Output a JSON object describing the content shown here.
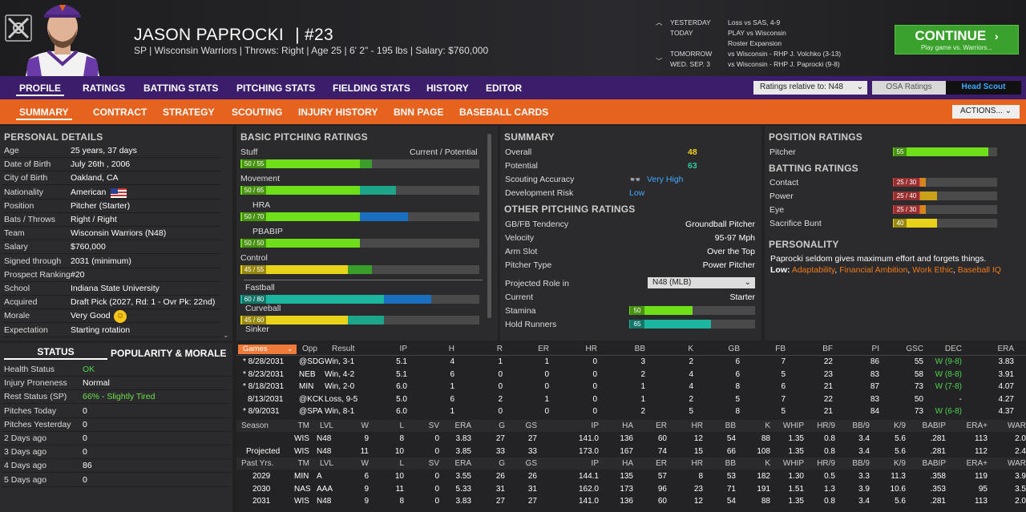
{
  "player": {
    "name": "JASON PAPROCKI",
    "number": "| #23",
    "subtitle": "SP | Wisconsin Warriors  |  Throws: Right  |  Age 25  |  6' 2\"  -  195 lbs  |  Salary: $760,000"
  },
  "schedule": [
    {
      "label": "YESTERDAY",
      "text": "Loss vs SAS, 4-9"
    },
    {
      "label": "TODAY",
      "text": "PLAY vs Wisconsin"
    },
    {
      "label": "",
      "text": "Roster Expansion"
    },
    {
      "label": "TOMORROW",
      "text": "vs Wisconsin - RHP J. Volchko (3-13)"
    },
    {
      "label": "WED. SEP. 3",
      "text": "vs Wisconsin - RHP J. Paprocki (9-8)"
    }
  ],
  "continue": {
    "label": "CONTINUE",
    "sub": "Play game vs. Warriors..."
  },
  "nav_main": [
    "PROFILE",
    "RATINGS",
    "BATTING STATS",
    "PITCHING STATS",
    "FIELDING STATS",
    "HISTORY",
    "EDITOR"
  ],
  "nav_sub": [
    "SUMMARY",
    "CONTRACT",
    "STRATEGY",
    "SCOUTING",
    "INJURY HISTORY",
    "BNN PAGE",
    "BASEBALL CARDS"
  ],
  "ratings_select": "Ratings relative to: N48",
  "osa_btn": "OSA Ratings",
  "scout_btn": "Head Scout",
  "actions_btn": "ACTIONS...",
  "personal": {
    "title": "PERSONAL DETAILS",
    "rows": [
      [
        "Age",
        "25 years, 37 days"
      ],
      [
        "Date of Birth",
        "July 26th , 2006"
      ],
      [
        "City of Birth",
        "Oakland, CA"
      ],
      [
        "Nationality",
        "American"
      ],
      [
        "Position",
        "Pitcher (Starter)"
      ],
      [
        "Bats / Throws",
        "Right / Right"
      ],
      [
        "Team",
        "Wisconsin Warriors (N48)"
      ],
      [
        "Salary",
        "$760,000"
      ],
      [
        "Signed through",
        "2031 (minimum)"
      ],
      [
        "Prospect Ranking",
        "#20"
      ],
      [
        "School",
        "Indiana State University"
      ],
      [
        "Acquired",
        "Draft Pick (2027, Rd: 1 - Ovr Pk: 22nd)"
      ],
      [
        "Morale",
        "Very Good"
      ],
      [
        "Expectation",
        "Starting rotation"
      ]
    ]
  },
  "status": {
    "tab1": "STATUS",
    "tab2": "POPULARITY & MORALE",
    "rows": [
      [
        "Health Status",
        "OK",
        "#4fd44f"
      ],
      [
        "Injury Proneness",
        "Normal",
        "#ffffff"
      ],
      [
        "Rest Status (SP)",
        "66% - Slightly Tired",
        "#6ee04a"
      ],
      [
        "Pitches Today",
        "0",
        "#ffffff"
      ],
      [
        "Pitches Yesterday",
        "0",
        "#ffffff"
      ],
      [
        "2 Days ago",
        "0",
        "#ffffff"
      ],
      [
        "3 Days ago",
        "0",
        "#ffffff"
      ],
      [
        "4 Days ago",
        "86",
        "#ffffff"
      ],
      [
        "5 Days ago",
        "0",
        "#ffffff"
      ]
    ]
  },
  "basic": {
    "title": "BASIC PITCHING RATINGS",
    "legend": "Current / Potential",
    "items": [
      {
        "label": "Stuff",
        "badge": "50 / 55",
        "cur": 50,
        "pot": 55,
        "potcol": "#3a9e2a"
      },
      {
        "label": "Movement",
        "badge": "50 / 65",
        "cur": 50,
        "pot": 65,
        "potcol": "#1da58a"
      },
      {
        "label": "HRA",
        "badge": "50 / 70",
        "cur": 50,
        "pot": 70,
        "potcol": "#1a6fc0",
        "sub": true
      },
      {
        "label": "PBABIP",
        "badge": "50 / 50",
        "cur": 50,
        "pot": 50,
        "potcol": "#3a9e2a",
        "sub": true
      },
      {
        "label": "Control",
        "badge": "45 / 55",
        "cur": 45,
        "pot": 55,
        "potcol": "#3a9e2a",
        "curcol": "#e8d21a"
      },
      {
        "label": "Fastball",
        "badge": "60 / 80",
        "cur": 60,
        "pot": 80,
        "potcol": "#1a6fc0",
        "curcol": "#1cb5a0"
      },
      {
        "label": "Curveball",
        "badge": "45 / 60",
        "cur": 45,
        "pot": 60,
        "potcol": "#1da58a",
        "curcol": "#e8d21a"
      },
      {
        "label": "Sinker",
        "badge": "",
        "cur": 0,
        "pot": 0,
        "potcol": "#1da58a"
      }
    ]
  },
  "summary": {
    "title": "SUMMARY",
    "overall": [
      "Overall",
      "48"
    ],
    "potential": [
      "Potential",
      "63"
    ],
    "scouting": [
      "Scouting Accuracy",
      "Very High"
    ],
    "devrisk": [
      "Development Risk",
      "Low"
    ],
    "other_title": "OTHER PITCHING RATINGS",
    "other": [
      [
        "GB/FB Tendency",
        "Groundball Pitcher"
      ],
      [
        "Velocity",
        "95-97 Mph"
      ],
      [
        "Arm Slot",
        "Over the Top"
      ],
      [
        "Pitcher Type",
        "Power Pitcher"
      ]
    ],
    "role_label": "Projected Role in",
    "role_select": "N48 (MLB)",
    "current": [
      "Current",
      "Starter"
    ],
    "stamina": {
      "label": "Stamina",
      "v": 50
    },
    "hold": {
      "label": "Hold Runners",
      "v": 65
    }
  },
  "position": {
    "title": "POSITION RATINGS",
    "pitcher": {
      "label": "Pitcher",
      "badge": "55",
      "v": 55
    },
    "batting_title": "BATTING RATINGS",
    "batting": [
      {
        "label": "Contact",
        "badge": "25 / 30",
        "cur": 25,
        "pot": 30,
        "col": "#e84a4a",
        "potcol": "#d4861a"
      },
      {
        "label": "Power",
        "badge": "25 / 40",
        "cur": 25,
        "pot": 40,
        "col": "#e84a4a",
        "potcol": "#c9a21a"
      },
      {
        "label": "Eye",
        "badge": "25 / 30",
        "cur": 25,
        "pot": 30,
        "col": "#e84a4a",
        "potcol": "#d4861a"
      },
      {
        "label": "Sacrifice Bunt",
        "badge": "40",
        "cur": 40,
        "pot": 40,
        "col": "#e8d21a",
        "potcol": "#e8d21a"
      }
    ]
  },
  "personality": {
    "title": "PERSONALITY",
    "text": "Paprocki seldom gives maximum effort and forgets things.",
    "low_label": "Low:",
    "traits": [
      "Adaptability",
      "Financial Ambition",
      "Work Ethic",
      "Baseball IQ"
    ]
  },
  "games": {
    "tab": "Games",
    "headers": [
      "Opp",
      "Result",
      "IP",
      "H",
      "R",
      "ER",
      "HR",
      "BB",
      "K",
      "GB",
      "FB",
      "BF",
      "PI",
      "GSC",
      "DEC",
      "ERA"
    ],
    "rows": [
      [
        "* 8/28/2031",
        "@SDG",
        "Win, 3-1",
        "5.1",
        "4",
        "1",
        "1",
        "0",
        "3",
        "2",
        "6",
        "7",
        "22",
        "86",
        "55",
        "W (9-8)",
        "3.83"
      ],
      [
        "* 8/23/2031",
        "NEB",
        "Win, 4-2",
        "5.1",
        "6",
        "0",
        "0",
        "0",
        "2",
        "4",
        "6",
        "5",
        "23",
        "83",
        "58",
        "W (8-8)",
        "3.91"
      ],
      [
        "* 8/18/2031",
        "MIN",
        "Win, 2-0",
        "6.0",
        "1",
        "0",
        "0",
        "0",
        "1",
        "4",
        "8",
        "6",
        "21",
        "87",
        "73",
        "W (7-8)",
        "4.07"
      ],
      [
        "8/13/2031",
        "@KCK",
        "Loss, 9-5",
        "5.0",
        "6",
        "2",
        "1",
        "0",
        "1",
        "2",
        "5",
        "7",
        "22",
        "83",
        "50",
        "-",
        "4.27"
      ],
      [
        "* 8/9/2031",
        "@SPA",
        "Win, 8-1",
        "6.0",
        "1",
        "0",
        "0",
        "0",
        "2",
        "5",
        "8",
        "5",
        "21",
        "84",
        "73",
        "W (6-8)",
        "4.37"
      ]
    ]
  },
  "season": {
    "headers": [
      "Season",
      "TM",
      "LVL",
      "W",
      "L",
      "SV",
      "ERA",
      "G",
      "GS",
      "IP",
      "HA",
      "ER",
      "HR",
      "BB",
      "K",
      "WHIP",
      "HR/9",
      "BB/9",
      "K/9",
      "BABIP",
      "ERA+",
      "WAR"
    ],
    "rows": [
      [
        "",
        "WIS",
        "N48",
        "9",
        "8",
        "0",
        "3.83",
        "27",
        "27",
        "141.0",
        "136",
        "60",
        "12",
        "54",
        "88",
        "1.35",
        "0.8",
        "3.4",
        "5.6",
        ".281",
        "113",
        "2.0"
      ],
      [
        "Projected",
        "WIS",
        "N48",
        "11",
        "10",
        "0",
        "3.85",
        "33",
        "33",
        "173.0",
        "167",
        "74",
        "15",
        "66",
        "108",
        "1.35",
        "0.8",
        "3.4",
        "5.6",
        ".281",
        "112",
        "2.4"
      ]
    ]
  },
  "past": {
    "headers": [
      "Past Yrs.",
      "TM",
      "LVL",
      "W",
      "L",
      "SV",
      "ERA",
      "G",
      "GS",
      "IP",
      "HA",
      "ER",
      "HR",
      "BB",
      "K",
      "WHIP",
      "HR/9",
      "BB/9",
      "K/9",
      "BABIP",
      "ERA+",
      "WAR"
    ],
    "rows": [
      [
        "2029",
        "MIN",
        "A",
        "6",
        "10",
        "0",
        "3.55",
        "26",
        "26",
        "144.1",
        "135",
        "57",
        "8",
        "53",
        "182",
        "1.30",
        "0.5",
        "3.3",
        "11.3",
        ".358",
        "119",
        "3.9"
      ],
      [
        "2030",
        "NAS",
        "AAA",
        "9",
        "11",
        "0",
        "5.33",
        "31",
        "31",
        "162.0",
        "173",
        "96",
        "23",
        "71",
        "191",
        "1.51",
        "1.3",
        "3.9",
        "10.6",
        ".353",
        "95",
        "3.5"
      ],
      [
        "2031",
        "WIS",
        "N48",
        "9",
        "8",
        "0",
        "3.83",
        "27",
        "27",
        "141.0",
        "136",
        "60",
        "12",
        "54",
        "88",
        "1.35",
        "0.8",
        "3.4",
        "5.6",
        ".281",
        "113",
        "2.0"
      ]
    ]
  }
}
